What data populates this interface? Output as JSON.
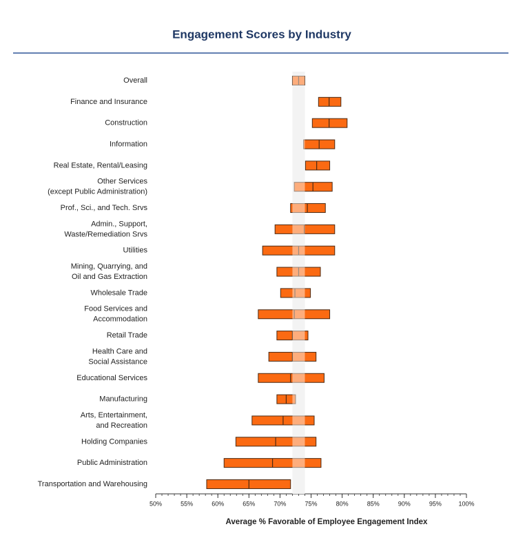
{
  "chart_data": {
    "type": "range_bar",
    "title": "Engagement Scores by Industry",
    "x_label": "Average % Favorable of Employee Engagement Index",
    "categories": [
      [
        "Overall"
      ],
      [
        "Finance and Insurance"
      ],
      [
        "Construction"
      ],
      [
        "Information"
      ],
      [
        "Real Estate, Rental/Leasing"
      ],
      [
        "Other Services",
        "(except Public Administration)"
      ],
      [
        "Prof., Sci., and Tech. Srvs"
      ],
      [
        "Admin., Support,",
        "Waste/Remediation Srvs"
      ],
      [
        "Utilities"
      ],
      [
        "Mining, Quarrying, and",
        "Oil and Gas Extraction"
      ],
      [
        "Wholesale Trade"
      ],
      [
        "Food Services and",
        "Accommodation"
      ],
      [
        "Retail Trade"
      ],
      [
        "Health Care and",
        "Social Assistance"
      ],
      [
        "Educational Services"
      ],
      [
        "Manufacturing"
      ],
      [
        "Arts, Entertainment,",
        "and Recreation"
      ],
      [
        "Holding Companies"
      ],
      [
        "Public Administration"
      ],
      [
        "Transportation and Warehousing"
      ]
    ],
    "low": [
      72.0,
      76.2,
      75.2,
      73.8,
      74.1,
      72.3,
      71.7,
      69.2,
      67.2,
      69.5,
      70.1,
      66.5,
      69.5,
      68.2,
      66.5,
      69.5,
      65.5,
      62.9,
      61.0,
      58.2
    ],
    "high": [
      74.0,
      79.8,
      80.8,
      78.8,
      78.0,
      78.4,
      77.3,
      78.8,
      78.8,
      76.5,
      74.9,
      78.0,
      74.5,
      75.8,
      77.1,
      72.5,
      75.5,
      75.8,
      76.6,
      71.7
    ],
    "median": [
      73.0,
      77.9,
      77.9,
      76.3,
      75.9,
      75.3,
      74.4,
      73.9,
      73.0,
      73.0,
      72.4,
      72.3,
      72.0,
      72.0,
      71.7,
      71.0,
      70.5,
      69.3,
      68.8,
      65.0
    ],
    "highlight_band": [
      72.0,
      74.0
    ],
    "color": "#fb6a12",
    "band_color": "#e9e9e9",
    "xlim": [
      50,
      100
    ],
    "xticks": [
      {
        "value": 50,
        "label": "50%"
      },
      {
        "value": 55,
        "label": "55%"
      },
      {
        "value": 60,
        "label": "60%"
      },
      {
        "value": 65,
        "label": "65%"
      },
      {
        "value": 70,
        "label": "70%"
      },
      {
        "value": 75,
        "label": "75%"
      },
      {
        "value": 80,
        "label": "80%"
      },
      {
        "value": 85,
        "label": "85%"
      },
      {
        "value": 90,
        "label": "90%"
      },
      {
        "value": 95,
        "label": "95%"
      },
      {
        "value": 100,
        "label": "100%"
      }
    ],
    "minor_ticks": true
  }
}
